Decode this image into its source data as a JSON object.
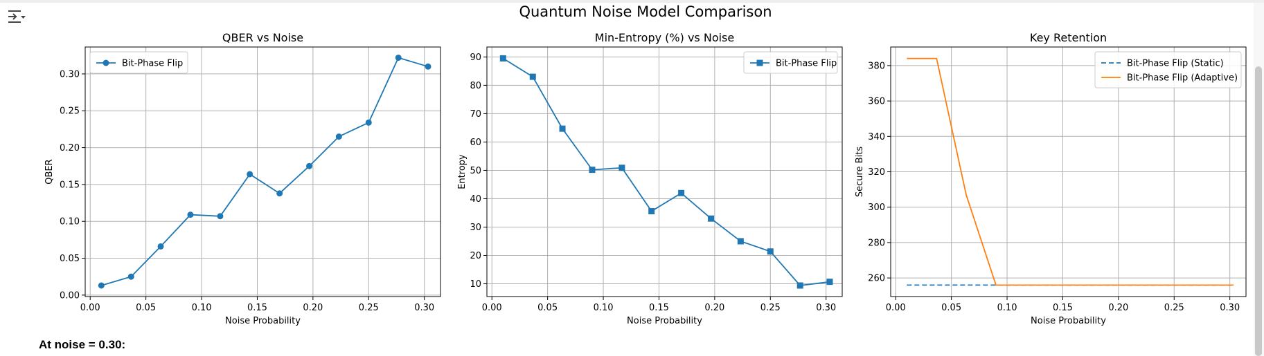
{
  "figure": {
    "suptitle": "Quantum Noise Model Comparison"
  },
  "footer": {
    "text": "At noise = 0.30:"
  },
  "toolbar": {
    "icon": "output-menu-icon"
  },
  "colors": {
    "blue": "#1f77b4",
    "orange": "#ff7f0e",
    "grid": "#b0b0b0",
    "axis": "#000000"
  },
  "chart_data": [
    {
      "type": "line",
      "title": "QBER vs Noise",
      "xlabel": "Noise Probability",
      "ylabel": "QBER",
      "xlim": [
        -0.0045,
        0.3145
      ],
      "ylim": [
        -0.002,
        0.3365
      ],
      "xticks": [
        0.0,
        0.05,
        0.1,
        0.15,
        0.2,
        0.25,
        0.3
      ],
      "xticklabels": [
        "0.00",
        "0.05",
        "0.10",
        "0.15",
        "0.20",
        "0.25",
        "0.30"
      ],
      "yticks": [
        0.0,
        0.05,
        0.1,
        0.15,
        0.2,
        0.25,
        0.3
      ],
      "yticklabels": [
        "0.00",
        "0.05",
        "0.10",
        "0.15",
        "0.20",
        "0.25",
        "0.30"
      ],
      "grid": true,
      "legend": "upper-left",
      "series": [
        {
          "name": "Bit-Phase Flip",
          "color": "#1f77b4",
          "marker": "circle",
          "dash": false,
          "x": [
            0.01,
            0.0367,
            0.0633,
            0.09,
            0.1167,
            0.1433,
            0.17,
            0.1967,
            0.2233,
            0.25,
            0.2767,
            0.3033
          ],
          "y": [
            0.013,
            0.025,
            0.066,
            0.109,
            0.107,
            0.164,
            0.138,
            0.175,
            0.215,
            0.234,
            0.322,
            0.31
          ]
        }
      ]
    },
    {
      "type": "line",
      "title": "Min-Entropy (%) vs Noise",
      "xlabel": "Noise Probability",
      "ylabel": "Entropy",
      "xlim": [
        -0.0045,
        0.3145
      ],
      "ylim": [
        5.5,
        93.5
      ],
      "xticks": [
        0.0,
        0.05,
        0.1,
        0.15,
        0.2,
        0.25,
        0.3
      ],
      "xticklabels": [
        "0.00",
        "0.05",
        "0.10",
        "0.15",
        "0.20",
        "0.25",
        "0.30"
      ],
      "yticks": [
        10,
        20,
        30,
        40,
        50,
        60,
        70,
        80,
        90
      ],
      "yticklabels": [
        "10",
        "20",
        "30",
        "40",
        "50",
        "60",
        "70",
        "80",
        "90"
      ],
      "grid": true,
      "legend": "upper-right",
      "series": [
        {
          "name": "Bit-Phase Flip",
          "color": "#1f77b4",
          "marker": "square",
          "dash": false,
          "x": [
            0.01,
            0.0367,
            0.0633,
            0.09,
            0.1167,
            0.1433,
            0.17,
            0.1967,
            0.2233,
            0.25,
            0.2767,
            0.3033
          ],
          "y": [
            89.5,
            83,
            64.7,
            50.2,
            50.9,
            35.6,
            42,
            33,
            25,
            21.4,
            9.4,
            10.7
          ]
        }
      ]
    },
    {
      "type": "line",
      "title": "Key Retention",
      "xlabel": "Noise Probability",
      "ylabel": "Secure Bits",
      "xlim": [
        -0.0045,
        0.3145
      ],
      "ylim": [
        249.5,
        390.5
      ],
      "xticks": [
        0.0,
        0.05,
        0.1,
        0.15,
        0.2,
        0.25,
        0.3
      ],
      "xticklabels": [
        "0.00",
        "0.05",
        "0.10",
        "0.15",
        "0.20",
        "0.25",
        "0.30"
      ],
      "yticks": [
        260,
        280,
        300,
        320,
        340,
        360,
        380
      ],
      "yticklabels": [
        "260",
        "280",
        "300",
        "320",
        "340",
        "360",
        "380"
      ],
      "grid": true,
      "legend": "upper-right",
      "series": [
        {
          "name": "Bit-Phase Flip (Static)",
          "color": "#1f77b4",
          "marker": "none",
          "dash": true,
          "x": [
            0.01,
            0.0367,
            0.0633,
            0.09,
            0.1167,
            0.1433,
            0.17,
            0.1967,
            0.2233,
            0.25,
            0.2767,
            0.3033
          ],
          "y": [
            256,
            256,
            256,
            256,
            256,
            256,
            256,
            256,
            256,
            256,
            256,
            256
          ]
        },
        {
          "name": "Bit-Phase Flip (Adaptive)",
          "color": "#ff7f0e",
          "marker": "none",
          "dash": false,
          "x": [
            0.01,
            0.0367,
            0.0633,
            0.09,
            0.1167,
            0.1433,
            0.17,
            0.1967,
            0.2233,
            0.25,
            0.2767,
            0.3033
          ],
          "y": [
            384,
            384,
            307,
            256,
            256,
            256,
            256,
            256,
            256,
            256,
            256,
            256
          ]
        }
      ]
    }
  ]
}
